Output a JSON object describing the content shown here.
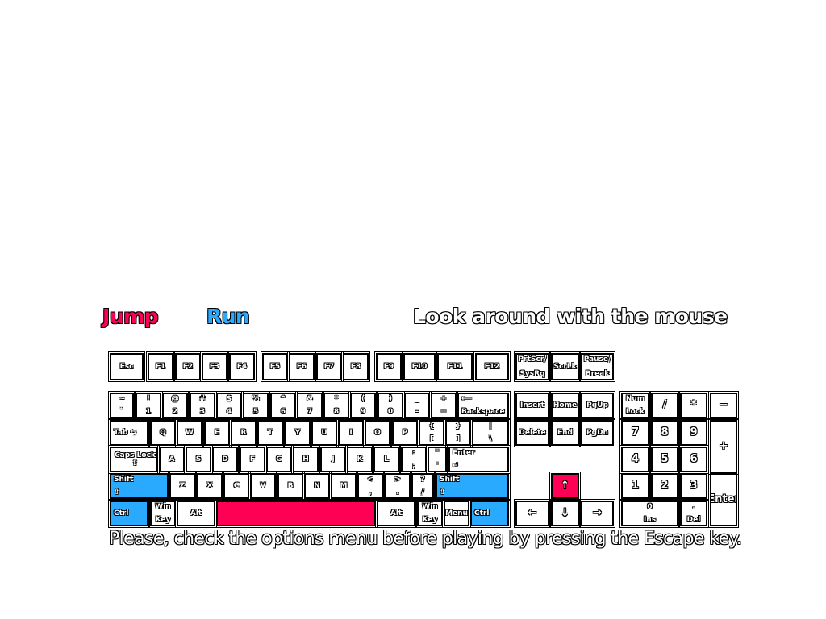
{
  "legend": {
    "jump": "Jump",
    "run": "Run",
    "look": "Look around with the mouse"
  },
  "hint": "Please, check the options menu before playing by pressing the Escape key.",
  "colors": {
    "jump": "#ff0055",
    "run": "#29aaff"
  },
  "keys": {
    "esc": "Esc",
    "f1": "F1",
    "f2": "F2",
    "f3": "F3",
    "f4": "F4",
    "f5": "F5",
    "f6": "F6",
    "f7": "F7",
    "f8": "F8",
    "f9": "F9",
    "f10": "F10",
    "f11": "F11",
    "f12": "F12",
    "prtscr": [
      "PrtScr/",
      "SysRq"
    ],
    "scrlk": "ScrLk",
    "pause": [
      "Pause/",
      "Break"
    ],
    "backquote": [
      "~",
      "`"
    ],
    "d1": [
      "!",
      "1"
    ],
    "d2": [
      "@",
      "2"
    ],
    "d3": [
      "#",
      "3"
    ],
    "d4": [
      "$",
      "4"
    ],
    "d5": [
      "%",
      "5"
    ],
    "d6": [
      "^",
      "6"
    ],
    "d7": [
      "&",
      "7"
    ],
    "d8": [
      "*",
      "8"
    ],
    "d9": [
      "(",
      "9"
    ],
    "d0": [
      ")",
      "0"
    ],
    "minus": [
      "_",
      "-"
    ],
    "equal": [
      "+",
      "="
    ],
    "backspace": [
      "⟵",
      "Backspace"
    ],
    "insert": "Insert",
    "home": "Home",
    "pgup": "PgUp",
    "numlock": [
      "Num",
      "Lock"
    ],
    "np_div": "/",
    "np_mul": "*",
    "np_minus": "−",
    "tab": "Tab ⇆",
    "q": "Q",
    "w": "W",
    "e": "E",
    "r": "R",
    "t": "T",
    "y": "Y",
    "u": "U",
    "i": "I",
    "o": "O",
    "p": "P",
    "lbracket": [
      "{",
      "["
    ],
    "rbracket": [
      "}",
      "]"
    ],
    "backslash": [
      "|",
      "\\"
    ],
    "delete": "Delete",
    "end": "End",
    "pgdn": "PgDn",
    "np7": "7",
    "np8": "8",
    "np9": "9",
    "np_plus": "+",
    "capslock": "Caps Lock ⇧",
    "a": "A",
    "s": "S",
    "d": "D",
    "f": "F",
    "g": "G",
    "h": "H",
    "j": "J",
    "k": "K",
    "l": "L",
    "semicolon": [
      ":",
      ";"
    ],
    "quote": [
      "\"",
      "'"
    ],
    "enter": [
      "Enter",
      "↵"
    ],
    "np4": "4",
    "np5": "5",
    "np6": "6",
    "lshift": [
      "Shift",
      "⇧"
    ],
    "z": "Z",
    "x": "X",
    "c": "C",
    "v": "V",
    "b": "B",
    "n": "N",
    "m": "M",
    "comma": [
      "<",
      ","
    ],
    "period": [
      ">",
      "."
    ],
    "slash": [
      "?",
      "/"
    ],
    "rshift": [
      "Shift",
      "⇧"
    ],
    "up": "↑",
    "np1": "1",
    "np2": "2",
    "np3": "3",
    "np_enter": "Enter",
    "lctrl": "Ctrl",
    "lwin": [
      "Win",
      "Key"
    ],
    "lalt": "Alt",
    "space": "",
    "ralt": "Alt",
    "rwin": [
      "Win",
      "Key"
    ],
    "menu": "Menu",
    "rctrl": "Ctrl",
    "left": "←",
    "down": "↓",
    "right": "→",
    "np0": [
      "0",
      "Ins"
    ],
    "np_dot": [
      ".",
      "Del"
    ]
  }
}
